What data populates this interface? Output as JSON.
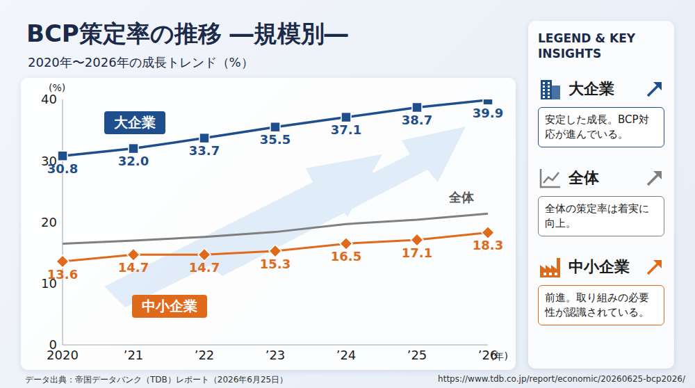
{
  "chart_data": {
    "type": "line",
    "title": "BCP策定率の推移 ―規模別―",
    "subtitle": "2020年〜2026年の成長トレンド（%）",
    "categories": [
      "2020",
      "’21",
      "’22",
      "’23",
      "’24",
      "’25",
      "’26"
    ],
    "y_label": "(%)",
    "x_label": "(年)",
    "ylim": [
      0,
      40
    ],
    "yticks": [
      0,
      10,
      20,
      30,
      40
    ],
    "grid": false,
    "legend": "right",
    "series": [
      {
        "name": "大企業",
        "color": "#1f4e8c",
        "marker": "square",
        "line_style": "solid",
        "data_labels": true,
        "values": [
          30.8,
          32.0,
          33.7,
          35.5,
          37.1,
          38.7,
          39.9
        ],
        "value_labels": [
          "30.8",
          "32.0",
          "33.7",
          "35.5",
          "37.1",
          "38.7",
          "39.9"
        ]
      },
      {
        "name": "全体",
        "color": "#7f7f7f",
        "marker": "none",
        "line_style": "solid",
        "data_labels": false,
        "values": [
          16.5,
          17.0,
          17.6,
          18.4,
          19.7,
          20.4,
          21.4
        ]
      },
      {
        "name": "中小企業",
        "color": "#e06a1b",
        "marker": "diamond",
        "line_style": "solid",
        "data_labels": true,
        "values": [
          13.6,
          14.7,
          14.7,
          15.3,
          16.5,
          17.1,
          18.3
        ]
      }
    ]
  },
  "legend_panel": {
    "title": "LEGEND & KEY INSIGHTS",
    "items": [
      {
        "series": "大企業",
        "text": "安定した成長。BCP対応が進んでいる。"
      },
      {
        "series": "全体",
        "text": "全体の策定率は着実に向上。"
      },
      {
        "series": "中小企業",
        "text": "前進。取り組みの必要性が認識されている。"
      }
    ]
  },
  "source": "データ出典：帝国データバンク（TDB）レポート（2026年6月25日）",
  "url": "https://www.tdb.co.jp/report/economic/20260625-bcp2026/"
}
